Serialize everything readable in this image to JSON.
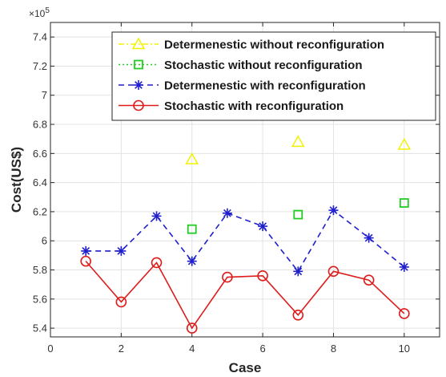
{
  "chart_data": {
    "type": "line",
    "xlabel": "Case",
    "ylabel": "Cost(US$)",
    "xlim": [
      0,
      11
    ],
    "ylim": [
      534000,
      750000
    ],
    "xticks": [
      0,
      2,
      4,
      6,
      8,
      10
    ],
    "xtick_labels": [
      "0",
      "2",
      "4",
      "6",
      "8",
      "10"
    ],
    "yticks": [
      540000,
      560000,
      580000,
      600000,
      620000,
      640000,
      660000,
      680000,
      700000,
      720000,
      740000
    ],
    "ytick_labels": [
      "5.4",
      "5.6",
      "5.8",
      "6",
      "6.2",
      "6.4",
      "6.6",
      "6.8",
      "7",
      "7.2",
      "7.4"
    ],
    "y_exponent_base": "×10",
    "y_exponent_power": "5",
    "grid": true,
    "legend_position": "top-right",
    "series": [
      {
        "name": "Determenestic without reconfiguration",
        "color": "#f2f200",
        "line": "dash-dot",
        "marker": "triangle",
        "x": [
          4,
          7,
          10
        ],
        "values": [
          656000,
          668000,
          666000
        ]
      },
      {
        "name": "Stochastic without reconfiguration",
        "color": "#22cc22",
        "line": "dotted",
        "marker": "square",
        "x": [
          4,
          7,
          10
        ],
        "values": [
          608000,
          618000,
          626000
        ]
      },
      {
        "name": "Determenestic with reconfiguration",
        "color": "#1f1fcc",
        "line": "dashed",
        "marker": "star",
        "x": [
          1,
          2,
          3,
          4,
          5,
          6,
          7,
          8,
          9,
          10
        ],
        "values": [
          593000,
          593000,
          617000,
          586000,
          619000,
          610000,
          579000,
          621000,
          602000,
          582000
        ]
      },
      {
        "name": "Stochastic with reconfiguration",
        "color": "#dd1c1c",
        "line": "solid",
        "marker": "circle",
        "x": [
          1,
          2,
          3,
          4,
          5,
          6,
          7,
          8,
          9,
          10
        ],
        "values": [
          586000,
          558000,
          585000,
          540000,
          575000,
          576000,
          549000,
          579000,
          573000,
          550000
        ]
      }
    ]
  }
}
